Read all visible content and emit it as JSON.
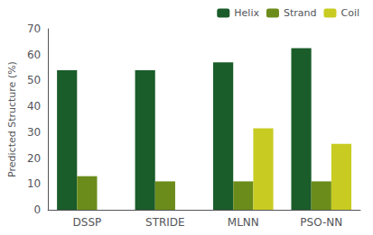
{
  "chart_data": {
    "type": "bar",
    "categories": [
      "DSSP",
      "STRIDE",
      "MLNN",
      "PSO-NN"
    ],
    "series": [
      {
        "name": "Helix",
        "color": "#1a5c2a",
        "values": [
          54,
          54,
          57,
          62.5
        ]
      },
      {
        "name": "Strand",
        "color": "#6b8c1a",
        "values": [
          13,
          11,
          11,
          11
        ]
      },
      {
        "name": "Coil",
        "color": "#c8cc22",
        "values": [
          0,
          0,
          31.5,
          25.5
        ]
      }
    ],
    "ylabel": "Predicted Structure (%)",
    "ylim": [
      0,
      70
    ],
    "yticks": [
      0,
      10,
      20,
      30,
      40,
      50,
      60,
      70
    ],
    "grid": false,
    "legend": "upper right"
  }
}
